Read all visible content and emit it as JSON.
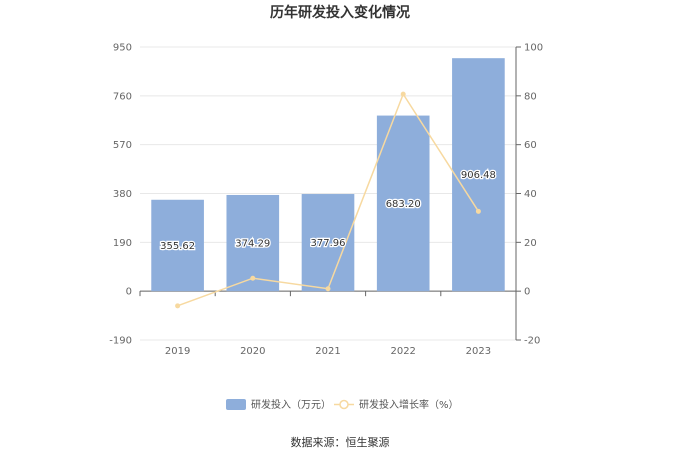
{
  "chart_data": {
    "type": "bar",
    "title": "历年研发投入变化情况",
    "categories": [
      "2019",
      "2020",
      "2021",
      "2022",
      "2023"
    ],
    "series": [
      {
        "name": "研发投入（万元）",
        "type": "bar",
        "axis": "left",
        "color": "#8eaedb",
        "values": [
          355.62,
          374.29,
          377.96,
          683.2,
          906.48
        ],
        "labels": [
          "355.62",
          "374.29",
          "377.96",
          "683.20",
          "906.48"
        ]
      },
      {
        "name": "研发投入增长率（%）",
        "type": "line",
        "axis": "right",
        "color": "#f7d9a0",
        "values": [
          -6.0,
          5.3,
          1.0,
          80.7,
          32.7
        ]
      }
    ],
    "y_left": {
      "min": -190,
      "max": 950,
      "ticks": [
        "-190",
        "0",
        "190",
        "380",
        "570",
        "760",
        "950"
      ]
    },
    "y_right": {
      "min": -20,
      "max": 100,
      "ticks": [
        "-20",
        "0",
        "20",
        "40",
        "60",
        "80",
        "100"
      ]
    },
    "grid": true,
    "legend_position": "bottom"
  },
  "source": "数据来源：恒生聚源"
}
